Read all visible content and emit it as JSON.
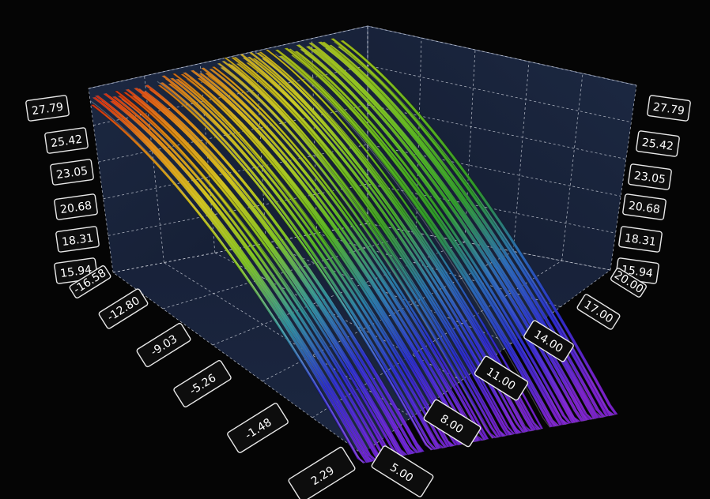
{
  "chart_data": {
    "type": "surface-3d-waterfall",
    "title": "",
    "y_axis": {
      "ticks": [
        "15.94",
        "18.31",
        "20.68",
        "23.05",
        "25.42",
        "27.79"
      ],
      "range": [
        15.94,
        27.79
      ]
    },
    "x_axis": {
      "ticks": [
        "-16.58",
        "-12.80",
        "-9.03",
        "-5.26",
        "-1.48",
        "2.29"
      ],
      "range": [
        -16.58,
        2.29
      ]
    },
    "z_axis": {
      "ticks": [
        "5.00",
        "8.00",
        "11.00",
        "14.00",
        "17.00",
        "20.00"
      ],
      "range": [
        5.0,
        20.0
      ]
    },
    "series": [
      {
        "z_start": 5.0,
        "z_end": 8.6,
        "peak_y": 27.0,
        "colors": [
          "#d62a0e",
          "#e08a12",
          "#cfc21a",
          "#7fc21e",
          "#2f8f9a",
          "#2b2ec8",
          "#6a22d0"
        ]
      },
      {
        "z_start": 9.0,
        "z_end": 12.4,
        "peak_y": 27.4,
        "colors": [
          "#d66a14",
          "#d6b41a",
          "#a9c81c",
          "#52b420",
          "#2a7fa8",
          "#2a2ccc",
          "#6f22d0"
        ]
      },
      {
        "z_start": 12.6,
        "z_end": 15.6,
        "peak_y": 27.8,
        "colors": [
          "#c9a41a",
          "#c9c81c",
          "#7cc21e",
          "#3ea425",
          "#2a74b0",
          "#2b2ccd",
          "#7522cf"
        ]
      },
      {
        "z_start": 16.0,
        "z_end": 20.0,
        "peak_y": 27.7,
        "colors": [
          "#a9b81a",
          "#8fc41c",
          "#56b420",
          "#2f9a2a",
          "#2a6cb6",
          "#2d2dcd",
          "#7c22cd"
        ]
      }
    ],
    "colors": {
      "background": "#050505",
      "wall": "#1b2740",
      "floor": "#141d33"
    },
    "grid": true,
    "legend": "none"
  }
}
